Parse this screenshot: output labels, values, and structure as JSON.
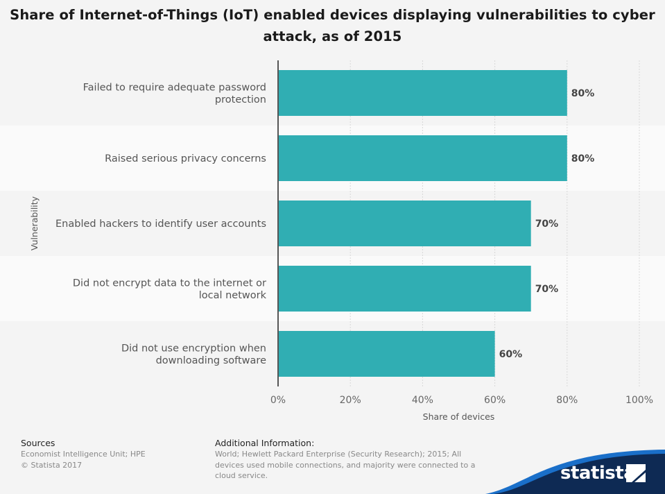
{
  "chart_data": {
    "type": "bar",
    "orientation": "horizontal",
    "title": "Share of Internet-of-Things (IoT) enabled devices displaying vulnerabilities to cyber attack, as of 2015",
    "categories": [
      [
        "Failed to require adequate password",
        "protection"
      ],
      [
        "Raised serious privacy concerns"
      ],
      [
        "Enabled hackers to identify user accounts"
      ],
      [
        "Did not encrypt data to the internet or",
        "local network"
      ],
      [
        "Did not use encryption when",
        "downloading software"
      ]
    ],
    "values": [
      80,
      80,
      70,
      70,
      60
    ],
    "value_labels": [
      "80%",
      "80%",
      "70%",
      "70%",
      "60%"
    ],
    "xlabel": "Share of devices",
    "ylabel": "Vulnerability",
    "xlim": [
      0,
      100
    ],
    "x_ticks": [
      "0%",
      "20%",
      "40%",
      "60%",
      "80%",
      "100%"
    ],
    "grid": true,
    "colors": {
      "bar": "#30aeb3",
      "band_alt": "#fafafa",
      "grid": "#d8d8d8",
      "axis": "#555555"
    }
  },
  "footer": {
    "sources_heading": "Sources",
    "sources_lines": [
      "Economist Intelligence Unit; HPE",
      "© Statista 2017"
    ],
    "info_heading": "Additional Information:",
    "info_lines": [
      "World; Hewlett Packard Enterprise (Security Research); 2015; All",
      "devices used mobile connections, and majority were connected to a",
      "cloud service."
    ]
  },
  "brand": {
    "name": "statista",
    "color": "#0e2a54",
    "accent": "#1a6fc9"
  }
}
